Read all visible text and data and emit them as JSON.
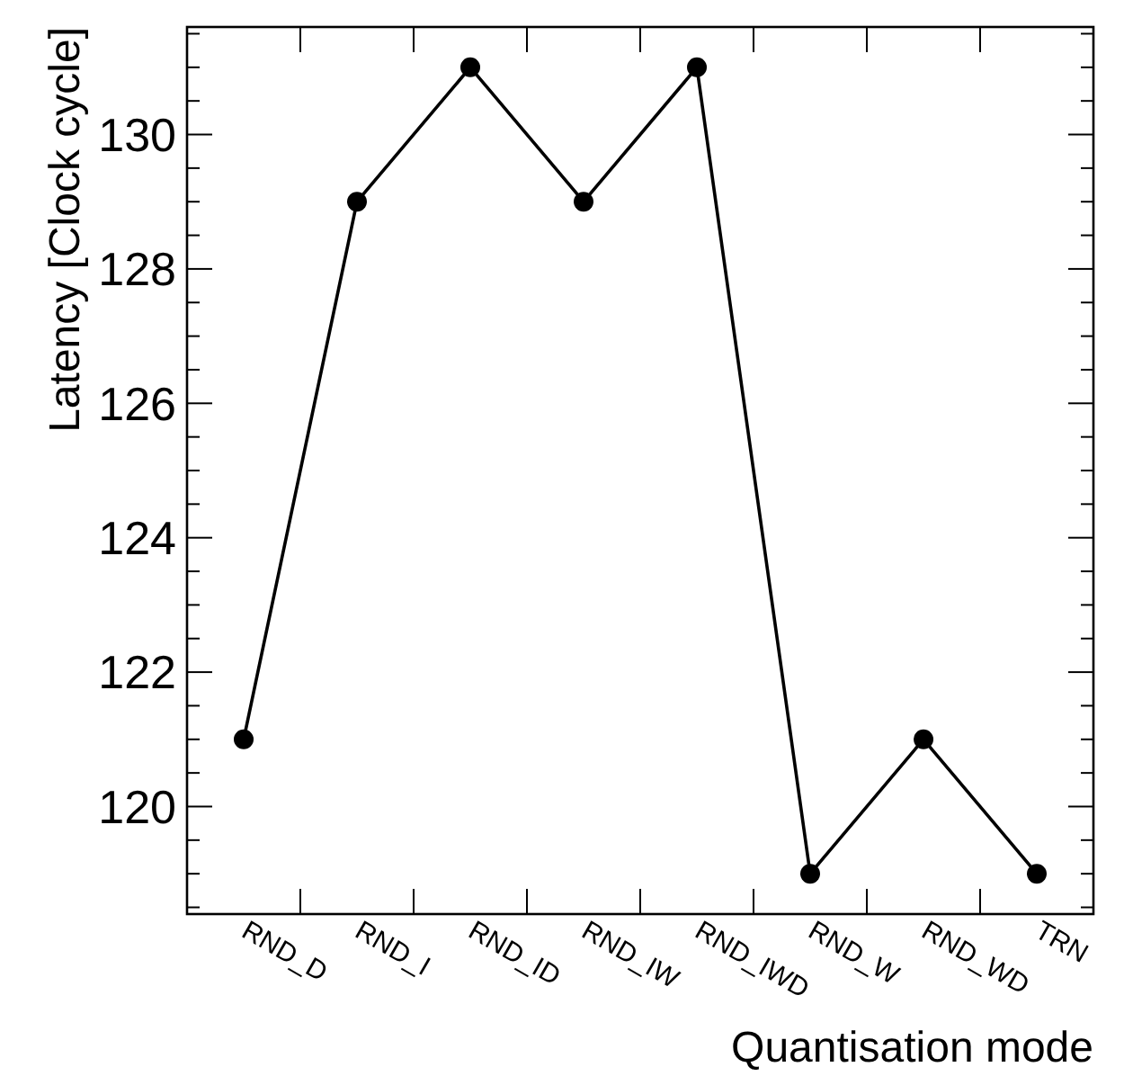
{
  "chart_data": {
    "type": "line",
    "xlabel": "Quantisation mode",
    "ylabel": "Latency [Clock cycle]",
    "categories": [
      "RND_D",
      "RND_I",
      "RND_ID",
      "RND_IW",
      "RND_IWD",
      "RND_W",
      "RND_WD",
      "TRN"
    ],
    "series": [
      {
        "color": "#000000",
        "values": [
          121,
          129,
          131,
          129,
          131,
          119,
          121,
          119
        ]
      }
    ],
    "ylim": [
      118.4,
      131.6
    ],
    "yticks": [
      120,
      122,
      124,
      126,
      128,
      130
    ],
    "grid": false,
    "marker": "circle",
    "line_style": "solid"
  }
}
